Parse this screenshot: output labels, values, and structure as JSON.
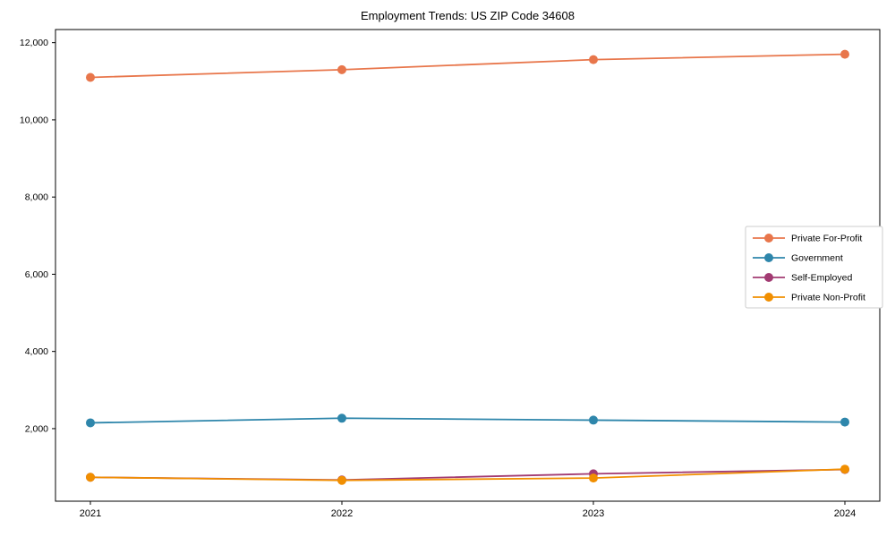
{
  "chart_data": {
    "type": "line",
    "title": "Employment Trends: US ZIP Code 34608",
    "xlabel": "",
    "ylabel": "",
    "categories": [
      "2021",
      "2022",
      "2023",
      "2024"
    ],
    "series": [
      {
        "name": "Private For-Profit",
        "color": "#E8764B",
        "values": [
          11100,
          11300,
          11560,
          11700
        ]
      },
      {
        "name": "Government",
        "color": "#2E86AB",
        "values": [
          2150,
          2270,
          2220,
          2170
        ]
      },
      {
        "name": "Self-Employed",
        "color": "#A23B72",
        "values": [
          740,
          670,
          830,
          940
        ]
      },
      {
        "name": "Private Non-Profit",
        "color": "#F18F01",
        "values": [
          740,
          660,
          720,
          950
        ]
      }
    ],
    "ylim": [
      120,
      12340
    ],
    "yticks": [
      2000,
      4000,
      6000,
      8000,
      10000,
      12000
    ],
    "ytick_labels": [
      "2,000",
      "4,000",
      "6,000",
      "8,000",
      "10,000",
      "12,000"
    ],
    "grid": false,
    "legend": {
      "position": "right-center",
      "items": [
        "Private For-Profit",
        "Government",
        "Self-Employed",
        "Private Non-Profit"
      ]
    },
    "marker": "circle",
    "axis_color": "#000000",
    "legend_border_color": "#cccccc"
  }
}
